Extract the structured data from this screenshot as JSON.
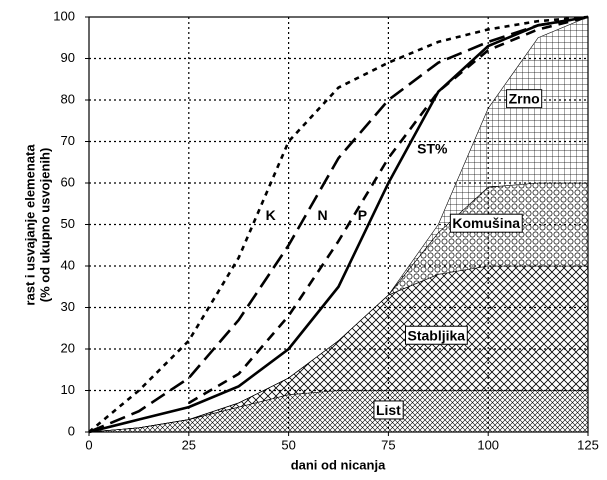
{
  "chart_data": {
    "type": "line",
    "x_label": "dani od nicanja",
    "y_label": [
      "rast i usvajanje elemenata",
      "(% od ukupno usvojenih)"
    ],
    "x": [
      0,
      12.5,
      25,
      37.5,
      50,
      62.5,
      75,
      87.5,
      100,
      112.5,
      125
    ],
    "xlim": [
      0,
      125
    ],
    "xticks": [
      0,
      25,
      50,
      75,
      100,
      125
    ],
    "ylim": [
      0,
      100
    ],
    "yticks": [
      0,
      10,
      20,
      30,
      40,
      50,
      60,
      70,
      80,
      90,
      100
    ],
    "grid": true,
    "areas": [
      {
        "name": "List",
        "pattern": "cross-fine",
        "values": [
          0,
          1,
          3,
          6,
          9,
          10,
          10,
          10,
          10,
          10,
          10
        ]
      },
      {
        "name": "Stabljika",
        "pattern": "diagonal-cross",
        "values": [
          0,
          0,
          0,
          1,
          4,
          12,
          23,
          28,
          30,
          30,
          30
        ]
      },
      {
        "name": "Komušina",
        "pattern": "circles",
        "values": [
          0,
          0,
          0,
          0,
          0,
          0,
          0,
          10,
          19,
          20,
          20
        ]
      },
      {
        "name": "Zrno",
        "pattern": "squares",
        "values": [
          0,
          0,
          0,
          0,
          0,
          0,
          0,
          2,
          19,
          35,
          40
        ]
      }
    ],
    "series": [
      {
        "name": "K",
        "color": "#000000",
        "dash": "dotted",
        "values": [
          0,
          10,
          22,
          42,
          70,
          83,
          89,
          94,
          97,
          99,
          100
        ]
      },
      {
        "name": "N",
        "color": "#000000",
        "dash": "long",
        "values": [
          0,
          5,
          13,
          27,
          45,
          66,
          80,
          89,
          94,
          98,
          100
        ]
      },
      {
        "name": "P",
        "color": "#000000",
        "dash": "medium",
        "values": [
          null,
          null,
          7,
          14,
          28,
          46,
          66,
          82,
          92,
          97,
          100
        ]
      },
      {
        "name": "ST%",
        "color": "#000000",
        "dash": "solid",
        "values": [
          0,
          3,
          6,
          11,
          20,
          35,
          60,
          82,
          93,
          98,
          100
        ]
      }
    ]
  }
}
